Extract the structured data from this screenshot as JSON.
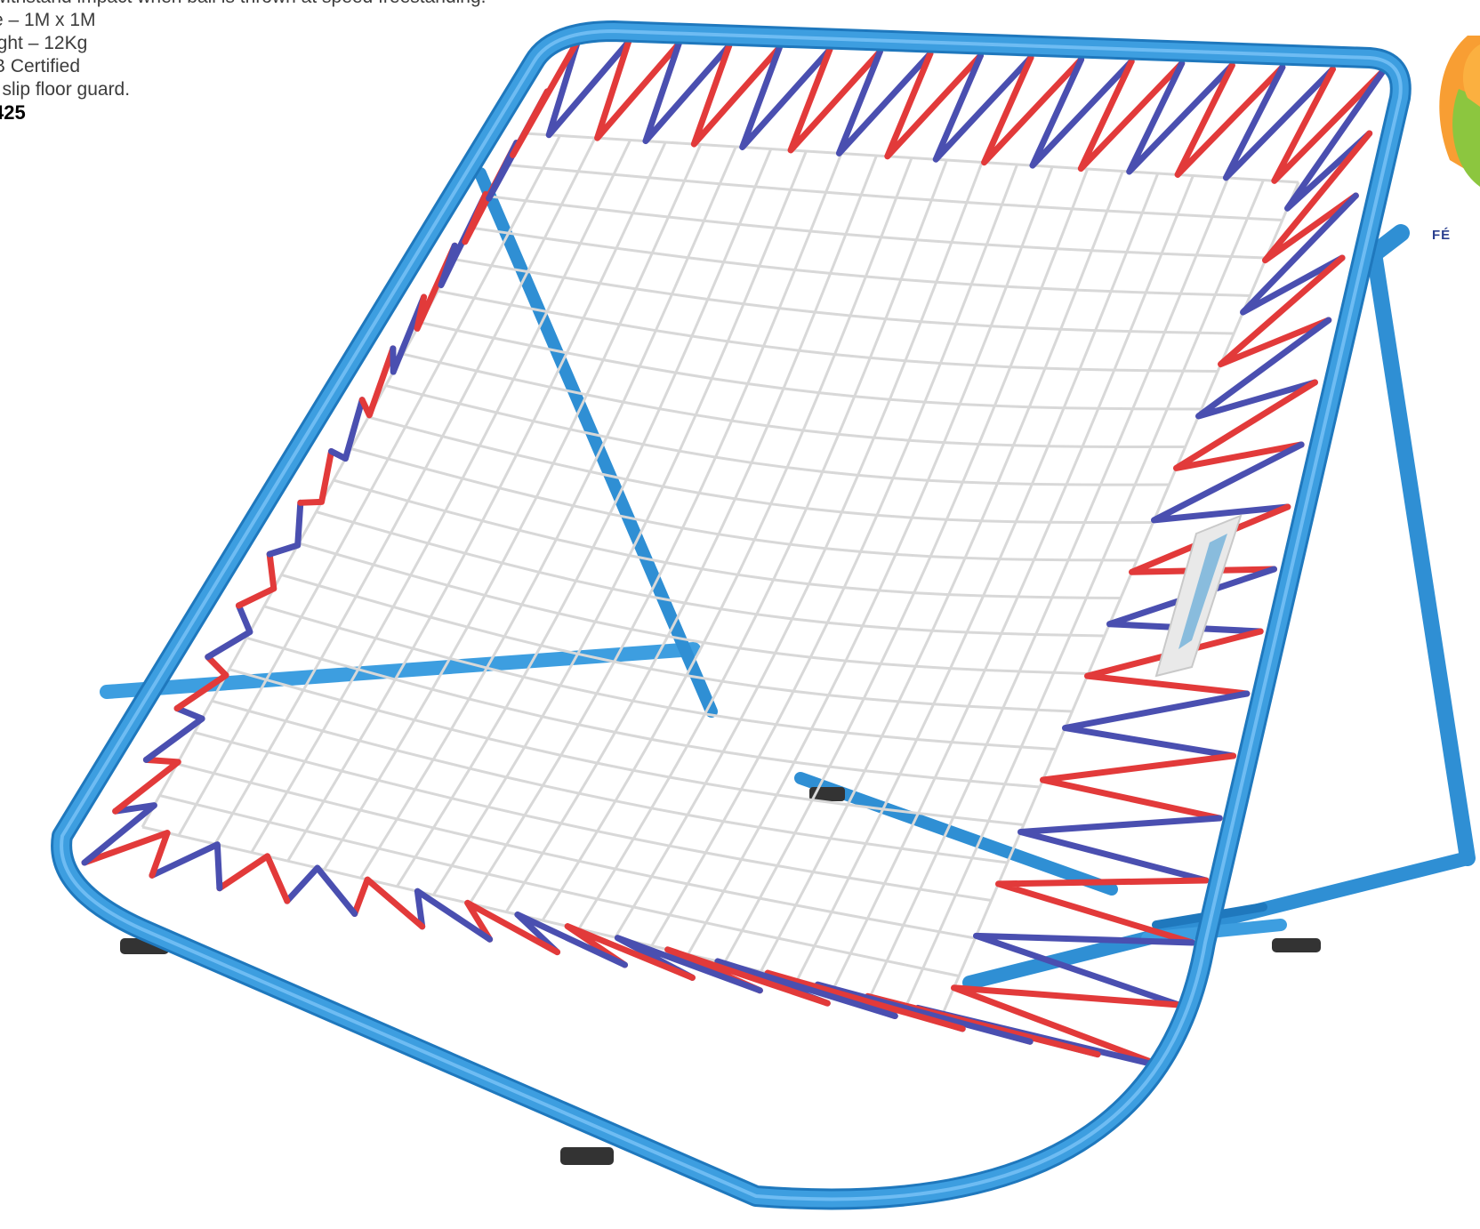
{
  "spec_lines": [
    "withstand impact when ball is thrown  at speed freestanding.",
    "e – 1M x 1M",
    "ight – 12Kg",
    "B Certified",
    "i slip floor guard."
  ],
  "product_code": "425",
  "logo_text": "FÉ",
  "colors": {
    "frame": "#3d9ee0",
    "frame_dark": "#1f78bd",
    "cord_red": "#e23a3a",
    "cord_blue": "#4a4fb0",
    "net": "#d8d8d8",
    "logo_green": "#8cc63f",
    "logo_orange": "#f7941d",
    "logo_text": "#2a3f8f"
  }
}
